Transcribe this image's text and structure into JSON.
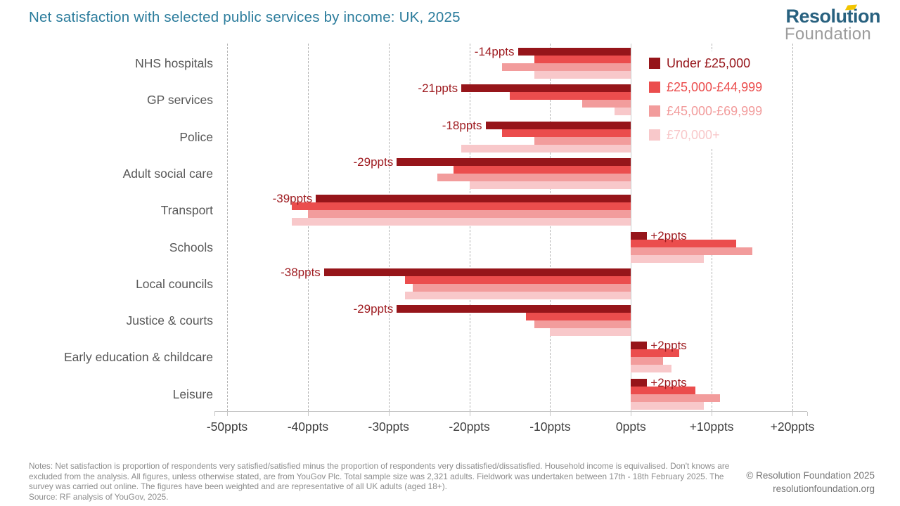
{
  "header": {
    "title": "Net satisfaction with selected public services by income: UK, 2025",
    "logo": {
      "line1": "Resolution",
      "line2": "Foundation"
    }
  },
  "colors": {
    "title_teal": "#2B7C9C",
    "logo_teal": "#28617F",
    "logo_gray": "#9C9C9C",
    "logo_yellow": "#F2C500",
    "annotation_red": "#9E1A1F",
    "category_gray": "#585858",
    "grid_gray": "#B3B3B3",
    "notes_gray": "#8C8C8C",
    "series_colors": [
      "#96151A",
      "#EB4D4D",
      "#F29C9C",
      "#F8C8CA"
    ]
  },
  "chart_data": {
    "type": "bar",
    "orientation": "horizontal",
    "title": "Net satisfaction with selected public services by income: UK, 2025",
    "unit": "ppts",
    "grid": "dashed-vertical",
    "legend_position": "top-right",
    "categories": [
      "NHS hospitals",
      "GP services",
      "Police",
      "Adult social care",
      "Transport",
      "Schools",
      "Local councils",
      "Justice & courts",
      "Early education & childcare",
      "Leisure"
    ],
    "series": [
      {
        "name": "Under £25,000",
        "color": "#96151A",
        "values": [
          -14,
          -21,
          -18,
          -29,
          -39,
          2,
          -38,
          -29,
          2,
          2
        ]
      },
      {
        "name": "£25,000-£44,999",
        "color": "#EB4D4D",
        "values": [
          -12,
          -15,
          -16,
          -22,
          -42,
          13,
          -28,
          -13,
          6,
          8
        ]
      },
      {
        "name": "£45,000-£69,999",
        "color": "#F29C9C",
        "values": [
          -16,
          -6,
          -12,
          -24,
          -40,
          15,
          -27,
          -12,
          4,
          11
        ]
      },
      {
        "name": "£70,000+",
        "color": "#F8C8CA",
        "values": [
          -12,
          -2,
          -21,
          -20,
          -42,
          9,
          -28,
          -10,
          5,
          9
        ]
      }
    ],
    "bar_labels": [
      "-14ppts",
      "-21ppts",
      "-18ppts",
      "-29ppts",
      "-39ppts",
      "+2ppts",
      "-38ppts",
      "-29ppts",
      "+2ppts",
      "+2ppts"
    ],
    "x_axis": {
      "min": -50,
      "max": 20,
      "tick_step": 10,
      "tick_labels": [
        "-50ppts",
        "-40ppts",
        "-30ppts",
        "-20ppts",
        "-10ppts",
        "0ppts",
        "+10ppts",
        "+20ppts"
      ]
    }
  },
  "footer": {
    "notes": "Notes: Net satisfaction is proportion of respondents very satisfied/satisfied minus the proportion of respondents very dissatisfied/dissatisfied. Household income is equivalised. Don't knows are excluded from the analysis. All figures, unless otherwise stated, are from YouGov Plc. Total sample size was 2,321 adults. Fieldwork was undertaken between 17th - 18th February 2025.  The survey was carried out online. The figures have been weighted and are representative of all UK adults (aged 18+).",
    "source": "Source: RF analysis of YouGov, 2025.",
    "copyright": "© Resolution Foundation 2025",
    "website": "resolutionfoundation.org"
  }
}
